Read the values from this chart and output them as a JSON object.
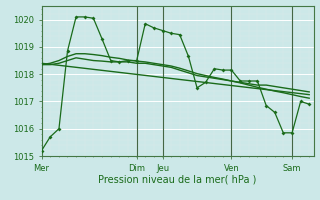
{
  "title": "Pression niveau de la mer( hPa )",
  "bg_color": "#cce8e8",
  "plot_bg_color": "#cce8e8",
  "grid_color_major": "#ffffff",
  "grid_color_minor": "#dde8e8",
  "line_color": "#1a6b1a",
  "ylim": [
    1015.0,
    1020.5
  ],
  "yticks": [
    1015,
    1016,
    1017,
    1018,
    1019,
    1020
  ],
  "day_labels": [
    "Mer",
    "Dim",
    "Jeu",
    "Ven",
    "Sam"
  ],
  "day_positions": [
    0.0,
    3.67,
    4.67,
    7.33,
    9.67
  ],
  "xlim": [
    0.0,
    10.5
  ],
  "vline_positions": [
    3.67,
    4.67,
    7.33,
    9.67
  ],
  "line1_x": [
    0.0,
    0.33,
    0.67,
    1.0,
    1.33,
    1.67,
    2.0,
    2.33,
    2.67,
    3.0,
    3.33,
    3.67,
    4.0,
    4.33,
    4.67,
    5.0,
    5.33,
    5.67,
    6.0,
    6.33,
    6.67,
    7.0,
    7.33,
    7.67,
    8.0,
    8.33,
    8.67,
    9.0,
    9.33,
    9.67,
    10.0,
    10.33
  ],
  "line1_y": [
    1015.2,
    1015.7,
    1016.0,
    1018.85,
    1020.1,
    1020.1,
    1020.05,
    1019.3,
    1018.5,
    1018.45,
    1018.5,
    1018.5,
    1019.85,
    1019.7,
    1019.6,
    1019.5,
    1019.45,
    1018.65,
    1017.5,
    1017.7,
    1018.2,
    1018.15,
    1018.15,
    1017.75,
    1017.75,
    1017.75,
    1016.85,
    1016.6,
    1015.85,
    1015.85,
    1017.0,
    1016.9
  ],
  "line2_x": [
    0.0,
    10.33
  ],
  "line2_y": [
    1018.4,
    1017.25
  ],
  "line3_x": [
    0.0,
    0.33,
    0.67,
    1.0,
    1.33,
    1.67,
    2.0,
    2.33,
    2.67,
    3.0,
    3.33,
    3.67,
    4.0,
    4.33,
    4.67,
    5.0,
    5.33,
    5.67,
    6.0,
    6.33,
    6.67,
    7.0,
    7.33,
    7.67,
    8.0,
    8.33,
    8.67,
    9.0,
    9.33,
    9.67,
    10.0,
    10.33
  ],
  "line3_y": [
    1018.35,
    1018.35,
    1018.4,
    1018.5,
    1018.6,
    1018.55,
    1018.5,
    1018.48,
    1018.45,
    1018.45,
    1018.45,
    1018.4,
    1018.4,
    1018.35,
    1018.3,
    1018.25,
    1018.15,
    1018.05,
    1017.95,
    1017.9,
    1017.85,
    1017.8,
    1017.75,
    1017.7,
    1017.65,
    1017.6,
    1017.6,
    1017.55,
    1017.5,
    1017.45,
    1017.4,
    1017.35
  ],
  "line4_x": [
    0.0,
    0.33,
    0.67,
    1.0,
    1.33,
    1.67,
    2.0,
    2.33,
    2.67,
    3.0,
    3.33,
    3.67,
    4.0,
    4.33,
    4.67,
    5.0,
    5.33,
    5.67,
    6.0,
    6.33,
    6.67,
    7.0,
    7.33,
    7.67,
    8.0,
    8.33,
    8.67,
    9.0,
    9.33,
    9.67,
    10.0,
    10.33
  ],
  "line4_y": [
    1018.35,
    1018.4,
    1018.5,
    1018.65,
    1018.75,
    1018.75,
    1018.72,
    1018.68,
    1018.62,
    1018.58,
    1018.52,
    1018.48,
    1018.45,
    1018.4,
    1018.35,
    1018.3,
    1018.22,
    1018.12,
    1018.02,
    1017.95,
    1017.88,
    1017.82,
    1017.75,
    1017.68,
    1017.6,
    1017.52,
    1017.45,
    1017.38,
    1017.32,
    1017.25,
    1017.18,
    1017.12
  ]
}
